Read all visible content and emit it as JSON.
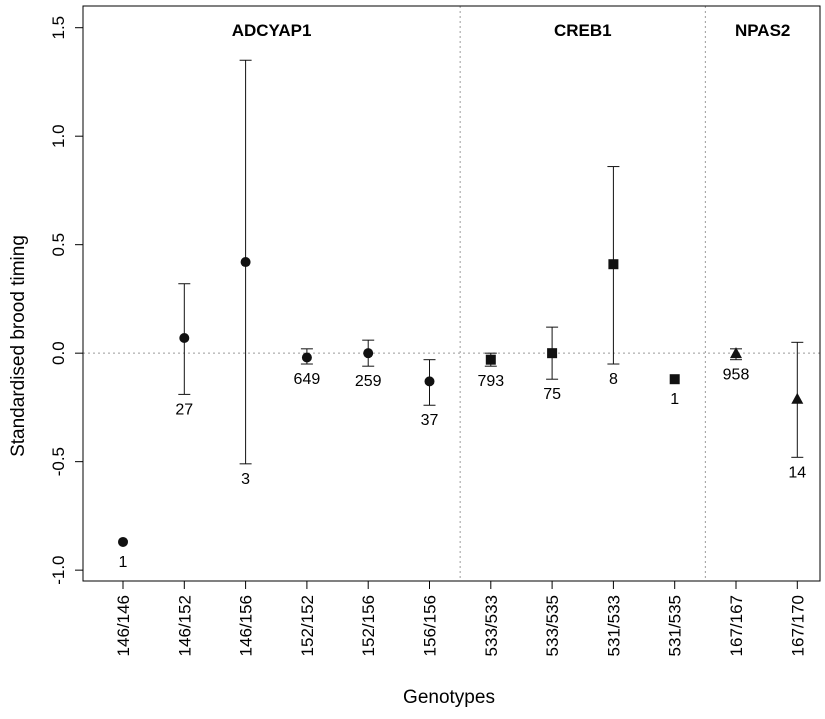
{
  "chart_data": {
    "type": "scatter",
    "subtype": "point estimates with error bars",
    "xlabel": "Genotypes",
    "ylabel": "Standardised brood timing",
    "ylim": [
      -1.05,
      1.6
    ],
    "yticks": [
      -1.0,
      -0.5,
      0.0,
      0.5,
      1.0,
      1.5
    ],
    "ytick_labels": [
      "-1.0",
      "-0.5",
      "0.0",
      "0.5",
      "1.0",
      "1.5"
    ],
    "reference_line_y": 0,
    "grid": false,
    "colors": {
      "ink": "#111111",
      "reference": "#9a9a9a",
      "frame": "#000000"
    },
    "groups": [
      {
        "name": "ADCYAP1",
        "marker": "circle",
        "categories": [
          "146/146",
          "146/152",
          "146/156",
          "152/152",
          "152/156",
          "156/156"
        ]
      },
      {
        "name": "CREB1",
        "marker": "square",
        "categories": [
          "533/533",
          "533/535",
          "531/533",
          "531/535"
        ]
      },
      {
        "name": "NPAS2",
        "marker": "triangle",
        "categories": [
          "167/167",
          "167/170"
        ]
      }
    ],
    "categories": [
      "146/146",
      "146/152",
      "146/156",
      "152/152",
      "152/156",
      "156/156",
      "533/533",
      "533/535",
      "531/533",
      "531/535",
      "167/167",
      "167/170"
    ],
    "points": [
      {
        "genotype": "146/146",
        "group": "ADCYAP1",
        "mean": -0.87,
        "lower": null,
        "upper": null,
        "n": "1"
      },
      {
        "genotype": "146/152",
        "group": "ADCYAP1",
        "mean": 0.07,
        "lower": -0.19,
        "upper": 0.32,
        "n": "27"
      },
      {
        "genotype": "146/156",
        "group": "ADCYAP1",
        "mean": 0.42,
        "lower": -0.51,
        "upper": 1.35,
        "n": "3"
      },
      {
        "genotype": "152/152",
        "group": "ADCYAP1",
        "mean": -0.02,
        "lower": -0.05,
        "upper": 0.02,
        "n": "649"
      },
      {
        "genotype": "152/156",
        "group": "ADCYAP1",
        "mean": 0.0,
        "lower": -0.06,
        "upper": 0.06,
        "n": "259"
      },
      {
        "genotype": "156/156",
        "group": "ADCYAP1",
        "mean": -0.13,
        "lower": -0.24,
        "upper": -0.03,
        "n": "37"
      },
      {
        "genotype": "533/533",
        "group": "CREB1",
        "mean": -0.03,
        "lower": -0.06,
        "upper": 0.0,
        "n": "793"
      },
      {
        "genotype": "533/535",
        "group": "CREB1",
        "mean": 0.0,
        "lower": -0.12,
        "upper": 0.12,
        "n": "75"
      },
      {
        "genotype": "531/533",
        "group": "CREB1",
        "mean": 0.41,
        "lower": -0.05,
        "upper": 0.86,
        "n": "8"
      },
      {
        "genotype": "531/535",
        "group": "CREB1",
        "mean": -0.12,
        "lower": null,
        "upper": null,
        "n": "1"
      },
      {
        "genotype": "167/167",
        "group": "NPAS2",
        "mean": 0.0,
        "lower": -0.03,
        "upper": 0.02,
        "n": "958"
      },
      {
        "genotype": "167/170",
        "group": "NPAS2",
        "mean": -0.21,
        "lower": -0.48,
        "upper": 0.05,
        "n": "14"
      }
    ]
  }
}
